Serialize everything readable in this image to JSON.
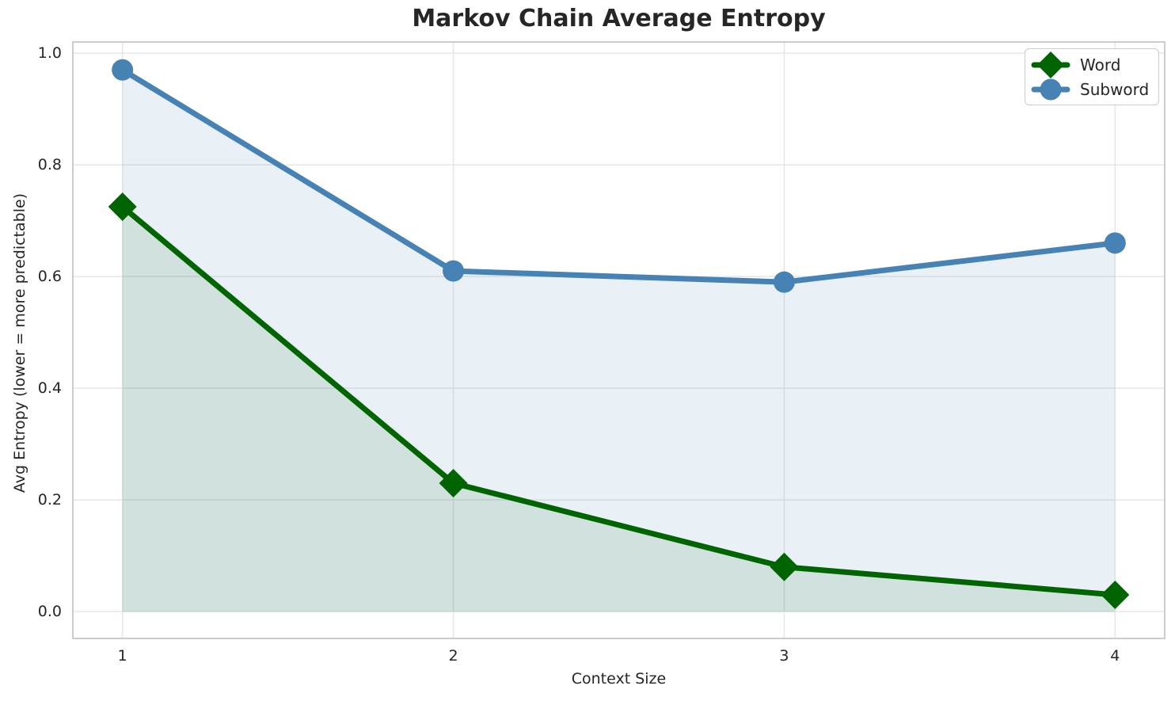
{
  "chart_data": {
    "type": "line",
    "title": "Markov Chain Average Entropy",
    "xlabel": "Context Size",
    "ylabel": "Avg Entropy (lower = more predictable)",
    "x": [
      1,
      2,
      3,
      4
    ],
    "series": [
      {
        "name": "Word",
        "values": [
          0.725,
          0.23,
          0.08,
          0.03
        ],
        "color": "#006400",
        "marker": "diamond",
        "area_fill": true,
        "fill_alpha": 0.1
      },
      {
        "name": "Subword",
        "values": [
          0.97,
          0.61,
          0.59,
          0.66
        ],
        "color": "#4682b4",
        "marker": "circle",
        "area_fill": true,
        "fill_alpha": 0.12
      }
    ],
    "xtick_values": [
      1,
      2,
      3,
      4
    ],
    "xtick_labels": [
      "1",
      "2",
      "3",
      "4"
    ],
    "ytick_values": [
      0.0,
      0.2,
      0.4,
      0.6,
      0.8,
      1.0
    ],
    "ytick_labels": [
      "0.0",
      "0.2",
      "0.4",
      "0.6",
      "0.8",
      "1.0"
    ],
    "xlim": [
      0.85,
      4.15
    ],
    "ylim": [
      -0.048,
      1.02
    ],
    "grid": true,
    "legend_position": "upper right",
    "colors": {
      "grid": "#e6e6e6",
      "spine": "#cccccc",
      "text": "#262626",
      "background": "#ffffff"
    }
  }
}
